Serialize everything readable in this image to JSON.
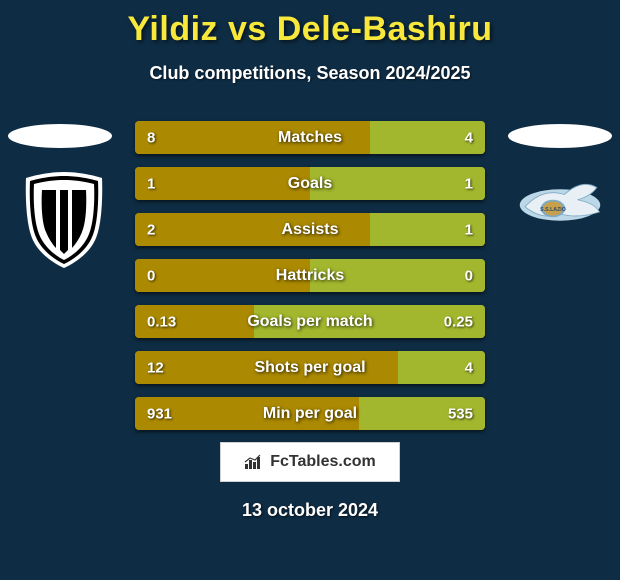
{
  "background_color": "#0e2d45",
  "title": {
    "text": "Yildiz vs Dele-Bashiru",
    "color": "#f7e83b",
    "fontsize": 34
  },
  "subtitle": {
    "text": "Club competitions, Season 2024/2025",
    "color": "#ffffff",
    "fontsize": 18
  },
  "oval_color": "#ffffff",
  "row_base_color": "#b3a024",
  "fill_left_color": "#ab8900",
  "fill_right_color": "#a2b72d",
  "row_text_color": "#ffffff",
  "rows": [
    {
      "label": "Matches",
      "left_val": "8",
      "right_val": "4",
      "left_pct": 67,
      "right_pct": 33
    },
    {
      "label": "Goals",
      "left_val": "1",
      "right_val": "1",
      "left_pct": 50,
      "right_pct": 50
    },
    {
      "label": "Assists",
      "left_val": "2",
      "right_val": "1",
      "left_pct": 67,
      "right_pct": 33
    },
    {
      "label": "Hattricks",
      "left_val": "0",
      "right_val": "0",
      "left_pct": 50,
      "right_pct": 50
    },
    {
      "label": "Goals per match",
      "left_val": "0.13",
      "right_val": "0.25",
      "left_pct": 34,
      "right_pct": 66
    },
    {
      "label": "Shots per goal",
      "left_val": "12",
      "right_val": "4",
      "left_pct": 75,
      "right_pct": 25
    },
    {
      "label": "Min per goal",
      "left_val": "931",
      "right_val": "535",
      "left_pct": 64,
      "right_pct": 36
    }
  ],
  "badge": {
    "text": "FcTables.com",
    "bg": "#ffffff",
    "text_color": "#333333"
  },
  "date": {
    "text": "13 october 2024",
    "color": "#ffffff"
  },
  "crests": {
    "left_name": "juventus",
    "right_name": "lazio"
  }
}
